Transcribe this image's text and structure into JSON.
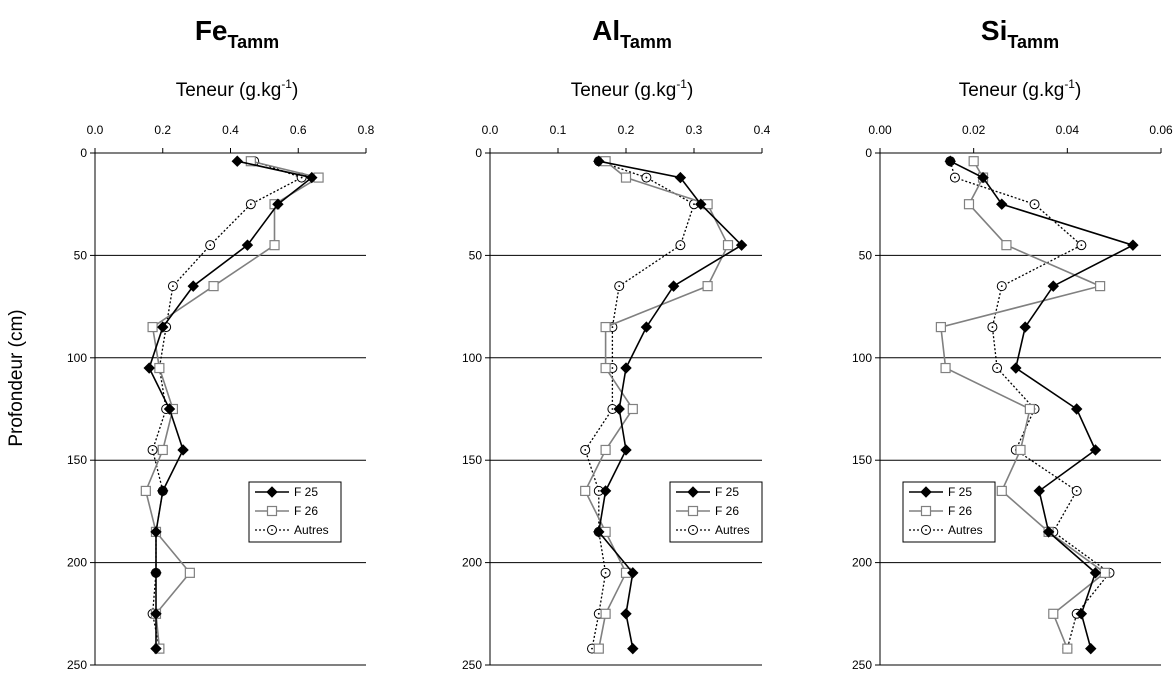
{
  "chart_data": [
    {
      "type": "line",
      "title": "Fe",
      "title_subscript": "Tamm",
      "xlabel": "Teneur (g.kg",
      "xlabel_sup": "-1",
      "xlabel_close": ")",
      "xlim": [
        0,
        0.8
      ],
      "ylim": [
        0,
        250
      ],
      "y_inverted": true,
      "x_axis_position": "top",
      "xticks": [
        "0.0",
        "0.2",
        "0.4",
        "0.6",
        "0.8"
      ],
      "xtick_values": [
        0,
        0.2,
        0.4,
        0.6,
        0.8
      ],
      "yticks": [
        "0",
        "50",
        "100",
        "150",
        "200",
        "250"
      ],
      "ytick_values": [
        0,
        50,
        100,
        150,
        200,
        250
      ],
      "grid": "horizontal",
      "legend_position": "bottom-right",
      "series": [
        {
          "name": "F 25",
          "color": "#000000",
          "marker": "diamond",
          "line": "solid",
          "points": [
            [
              0.42,
              4
            ],
            [
              0.64,
              12
            ],
            [
              0.54,
              25
            ],
            [
              0.45,
              45
            ],
            [
              0.29,
              65
            ],
            [
              0.2,
              85
            ],
            [
              0.16,
              105
            ],
            [
              0.22,
              125
            ],
            [
              0.26,
              145
            ],
            [
              0.2,
              165
            ],
            [
              0.18,
              185
            ],
            [
              0.18,
              205
            ],
            [
              0.18,
              225
            ],
            [
              0.18,
              242
            ]
          ]
        },
        {
          "name": "F 26",
          "color": "#808080",
          "marker": "square",
          "line": "solid",
          "points": [
            [
              0.46,
              4
            ],
            [
              0.66,
              12
            ],
            [
              0.53,
              25
            ],
            [
              0.53,
              45
            ],
            [
              0.35,
              65
            ],
            [
              0.17,
              85
            ],
            [
              0.19,
              105
            ],
            [
              0.23,
              125
            ],
            [
              0.2,
              145
            ],
            [
              0.15,
              165
            ],
            [
              0.18,
              185
            ],
            [
              0.28,
              205
            ],
            [
              0.18,
              225
            ],
            [
              0.19,
              242
            ]
          ]
        },
        {
          "name": "Autres",
          "color": "#000000",
          "marker": "circle",
          "line": "dotted",
          "points": [
            [
              0.47,
              4
            ],
            [
              0.61,
              12
            ],
            [
              0.46,
              25
            ],
            [
              0.34,
              45
            ],
            [
              0.23,
              65
            ],
            [
              0.21,
              85
            ],
            [
              0.19,
              105
            ],
            [
              0.21,
              125
            ],
            [
              0.17,
              145
            ],
            [
              0.2,
              165
            ],
            [
              0.18,
              185
            ],
            [
              0.18,
              205
            ],
            [
              0.17,
              225
            ],
            [
              0.19,
              242
            ]
          ]
        }
      ]
    },
    {
      "type": "line",
      "title": "Al",
      "title_subscript": "Tamm",
      "xlabel": "Teneur (g.kg",
      "xlabel_sup": "-1",
      "xlabel_close": ")",
      "xlim": [
        0,
        0.4
      ],
      "ylim": [
        0,
        250
      ],
      "y_inverted": true,
      "x_axis_position": "top",
      "xticks": [
        "0.0",
        "0.1",
        "0.2",
        "0.3",
        "0.4"
      ],
      "xtick_values": [
        0,
        0.1,
        0.2,
        0.3,
        0.4
      ],
      "yticks": [
        "0",
        "50",
        "100",
        "150",
        "200",
        "250"
      ],
      "ytick_values": [
        0,
        50,
        100,
        150,
        200,
        250
      ],
      "grid": "horizontal",
      "legend_position": "bottom-right",
      "series": [
        {
          "name": "F 25",
          "color": "#000000",
          "marker": "diamond",
          "line": "solid",
          "points": [
            [
              0.16,
              4
            ],
            [
              0.28,
              12
            ],
            [
              0.31,
              25
            ],
            [
              0.37,
              45
            ],
            [
              0.27,
              65
            ],
            [
              0.23,
              85
            ],
            [
              0.2,
              105
            ],
            [
              0.19,
              125
            ],
            [
              0.2,
              145
            ],
            [
              0.17,
              165
            ],
            [
              0.16,
              185
            ],
            [
              0.21,
              205
            ],
            [
              0.2,
              225
            ],
            [
              0.21,
              242
            ]
          ]
        },
        {
          "name": "F 26",
          "color": "#808080",
          "marker": "square",
          "line": "solid",
          "points": [
            [
              0.17,
              4
            ],
            [
              0.2,
              12
            ],
            [
              0.32,
              25
            ],
            [
              0.35,
              45
            ],
            [
              0.32,
              65
            ],
            [
              0.17,
              85
            ],
            [
              0.17,
              105
            ],
            [
              0.21,
              125
            ],
            [
              0.17,
              145
            ],
            [
              0.14,
              165
            ],
            [
              0.17,
              185
            ],
            [
              0.2,
              205
            ],
            [
              0.17,
              225
            ],
            [
              0.16,
              242
            ]
          ]
        },
        {
          "name": "Autres",
          "color": "#000000",
          "marker": "circle",
          "line": "dotted",
          "points": [
            [
              0.16,
              4
            ],
            [
              0.23,
              12
            ],
            [
              0.3,
              25
            ],
            [
              0.28,
              45
            ],
            [
              0.19,
              65
            ],
            [
              0.18,
              85
            ],
            [
              0.18,
              105
            ],
            [
              0.18,
              125
            ],
            [
              0.14,
              145
            ],
            [
              0.16,
              165
            ],
            [
              0.16,
              185
            ],
            [
              0.17,
              205
            ],
            [
              0.16,
              225
            ],
            [
              0.15,
              242
            ]
          ]
        }
      ]
    },
    {
      "type": "line",
      "title": "Si",
      "title_subscript": "Tamm",
      "xlabel": "Teneur (g.kg",
      "xlabel_sup": "-1",
      "xlabel_close": ")",
      "xlim": [
        0,
        0.06
      ],
      "ylim": [
        0,
        250
      ],
      "y_inverted": true,
      "x_axis_position": "top",
      "xticks": [
        "0.00",
        "0.02",
        "0.04",
        "0.06"
      ],
      "xtick_values": [
        0,
        0.02,
        0.04,
        0.06
      ],
      "yticks": [
        "0",
        "50",
        "100",
        "150",
        "200",
        "250"
      ],
      "ytick_values": [
        0,
        50,
        100,
        150,
        200,
        250
      ],
      "grid": "horizontal",
      "legend_position": "bottom-left",
      "series": [
        {
          "name": "F 25",
          "color": "#000000",
          "marker": "diamond",
          "line": "solid",
          "points": [
            [
              0.015,
              4
            ],
            [
              0.022,
              12
            ],
            [
              0.026,
              25
            ],
            [
              0.054,
              45
            ],
            [
              0.037,
              65
            ],
            [
              0.031,
              85
            ],
            [
              0.029,
              105
            ],
            [
              0.042,
              125
            ],
            [
              0.046,
              145
            ],
            [
              0.034,
              165
            ],
            [
              0.036,
              185
            ],
            [
              0.046,
              205
            ],
            [
              0.043,
              225
            ],
            [
              0.045,
              242
            ]
          ]
        },
        {
          "name": "F 26",
          "color": "#808080",
          "marker": "square",
          "line": "solid",
          "points": [
            [
              0.02,
              4
            ],
            [
              0.022,
              12
            ],
            [
              0.019,
              25
            ],
            [
              0.027,
              45
            ],
            [
              0.047,
              65
            ],
            [
              0.013,
              85
            ],
            [
              0.014,
              105
            ],
            [
              0.032,
              125
            ],
            [
              0.03,
              145
            ],
            [
              0.026,
              165
            ],
            [
              0.036,
              185
            ],
            [
              0.048,
              205
            ],
            [
              0.037,
              225
            ],
            [
              0.04,
              242
            ]
          ]
        },
        {
          "name": "Autres",
          "color": "#000000",
          "marker": "circle",
          "line": "dotted",
          "points": [
            [
              0.015,
              4
            ],
            [
              0.016,
              12
            ],
            [
              0.033,
              25
            ],
            [
              0.043,
              45
            ],
            [
              0.026,
              65
            ],
            [
              0.024,
              85
            ],
            [
              0.025,
              105
            ],
            [
              0.033,
              125
            ],
            [
              0.029,
              145
            ],
            [
              0.042,
              165
            ],
            [
              0.037,
              185
            ],
            [
              0.049,
              205
            ],
            [
              0.042,
              225
            ],
            [
              0.04,
              242
            ]
          ]
        }
      ]
    }
  ],
  "shared_ylabel": "Profondeur (cm)"
}
